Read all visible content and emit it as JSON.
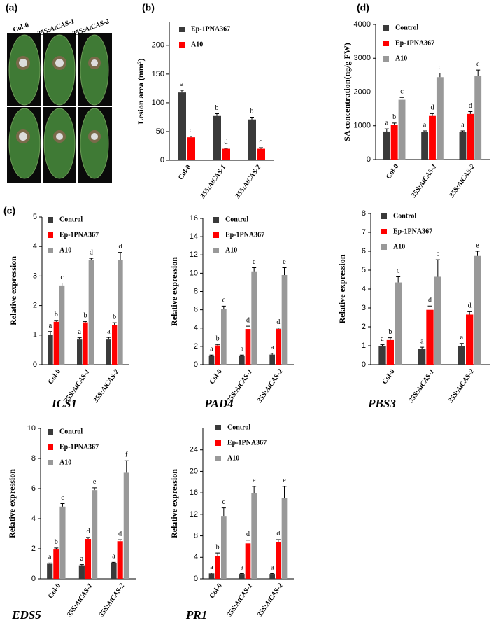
{
  "panel_a": {
    "label": "(a)",
    "columns": [
      "Col-0",
      "35S:AtCAS-1",
      "35S:AtCAS-2"
    ]
  },
  "chart_data": [
    {
      "type": "bar",
      "panel": "(b)",
      "ylabel": "Lesion area (mm²)",
      "categories": [
        "Col-0",
        "35S:AtCAS-1",
        "35S:AtCAS-2"
      ],
      "series": [
        {
          "name": "Ep-1PNA367",
          "color": "#3a3a3a",
          "values": [
            118,
            77,
            71
          ],
          "errors": [
            4,
            4,
            4
          ],
          "letters": [
            "a",
            "b",
            "b"
          ]
        },
        {
          "name": "A10",
          "color": "#ff0000",
          "values": [
            40,
            20,
            20
          ],
          "errors": [
            2,
            1,
            2
          ],
          "letters": [
            "c",
            "d",
            "d"
          ]
        }
      ],
      "ylim": [
        0,
        240
      ],
      "yticks": [
        0,
        50,
        100,
        150,
        200
      ]
    },
    {
      "type": "bar",
      "panel": "(d)",
      "ylabel": "SA concentration(ng/g FW)",
      "categories": [
        "Col-0",
        "35S:AtCAS-1",
        "35S:AtCAS-2"
      ],
      "series": [
        {
          "name": "Control",
          "color": "#3a3a3a",
          "values": [
            830,
            820,
            820
          ],
          "errors": [
            80,
            30,
            30
          ],
          "letters": [
            "a",
            "a",
            "a"
          ]
        },
        {
          "name": "Ep-1PNA367",
          "color": "#ff0000",
          "values": [
            1030,
            1290,
            1350
          ],
          "errors": [
            50,
            70,
            70
          ],
          "letters": [
            "b",
            "d",
            "d"
          ]
        },
        {
          "name": "A10",
          "color": "#999999",
          "values": [
            1770,
            2440,
            2470
          ],
          "errors": [
            70,
            120,
            180
          ],
          "letters": [
            "c",
            "c",
            "c"
          ]
        }
      ],
      "ylim": [
        0,
        4000
      ],
      "yticks": [
        0,
        1000,
        2000,
        3000,
        4000
      ]
    },
    {
      "type": "bar",
      "panel": "(c)",
      "title": "ICS1",
      "ylabel": "Relative expression",
      "categories": [
        "Col-0",
        "35S:AtCAS-1",
        "35S:AtCAS-2"
      ],
      "series": [
        {
          "name": "Control",
          "color": "#3a3a3a",
          "values": [
            1.0,
            0.85,
            0.85
          ],
          "errors": [
            0.12,
            0.06,
            0.07
          ],
          "letters": [
            "a",
            "a",
            "a"
          ]
        },
        {
          "name": "Ep-1PNA367",
          "color": "#ff0000",
          "values": [
            1.45,
            1.43,
            1.35
          ],
          "errors": [
            0.05,
            0.03,
            0.07
          ],
          "letters": [
            "b",
            "b",
            "b"
          ]
        },
        {
          "name": "A10",
          "color": "#999999",
          "values": [
            2.68,
            3.55,
            3.55
          ],
          "errors": [
            0.08,
            0.05,
            0.25
          ],
          "letters": [
            "c",
            "d",
            "d"
          ]
        }
      ],
      "ylim": [
        0,
        5
      ],
      "yticks": [
        0,
        1,
        2,
        3,
        4,
        5
      ]
    },
    {
      "type": "bar",
      "title": "PAD4",
      "ylabel": "Relative expression",
      "categories": [
        "Col-0",
        "35S:AtCAS-1",
        "35S:AtCAS-2"
      ],
      "series": [
        {
          "name": "Control",
          "color": "#3a3a3a",
          "values": [
            1.0,
            1.0,
            1.1
          ],
          "errors": [
            0.05,
            0.05,
            0.15
          ],
          "letters": [
            "a",
            "a",
            "a"
          ]
        },
        {
          "name": "Ep-1PNA367",
          "color": "#ff0000",
          "values": [
            2.1,
            3.9,
            3.9
          ],
          "errors": [
            0.1,
            0.3,
            0.1
          ],
          "letters": [
            "b",
            "d",
            "d"
          ]
        },
        {
          "name": "A10",
          "color": "#999999",
          "values": [
            6.1,
            10.2,
            9.8
          ],
          "errors": [
            0.3,
            0.4,
            0.8
          ],
          "letters": [
            "c",
            "e",
            "e"
          ]
        }
      ],
      "ylim": [
        0,
        16
      ],
      "yticks": [
        0,
        2,
        4,
        6,
        8,
        10,
        12,
        14,
        16
      ]
    },
    {
      "type": "bar",
      "title": "PBS3",
      "ylabel": "Relative expression",
      "categories": [
        "Col-0",
        "35S:AtCAS-1",
        "35S:AtCAS-2"
      ],
      "series": [
        {
          "name": "Control",
          "color": "#3a3a3a",
          "values": [
            1.0,
            0.85,
            1.0
          ],
          "errors": [
            0.05,
            0.07,
            0.12
          ],
          "letters": [
            "a",
            "a",
            "a"
          ]
        },
        {
          "name": "Ep-1PNA367",
          "color": "#ff0000",
          "values": [
            1.3,
            2.9,
            2.65
          ],
          "errors": [
            0.12,
            0.2,
            0.15
          ],
          "letters": [
            "b",
            "d",
            "d"
          ]
        },
        {
          "name": "A10",
          "color": "#999999",
          "values": [
            4.35,
            4.65,
            5.75
          ],
          "errors": [
            0.3,
            0.9,
            0.25
          ],
          "letters": [
            "c",
            "c",
            "e"
          ]
        }
      ],
      "ylim": [
        0,
        8
      ],
      "yticks": [
        0,
        1,
        2,
        3,
        4,
        5,
        6,
        7,
        8
      ]
    },
    {
      "type": "bar",
      "title": "EDS5",
      "ylabel": "Relative expression",
      "categories": [
        "Col-0",
        "35S:AtCAS-1",
        "35S:AtCAS-2"
      ],
      "series": [
        {
          "name": "Control",
          "color": "#3a3a3a",
          "values": [
            1.0,
            0.9,
            1.05
          ],
          "errors": [
            0.05,
            0.05,
            0.05
          ],
          "letters": [
            "a",
            "a",
            "a"
          ]
        },
        {
          "name": "Ep-1PNA367",
          "color": "#ff0000",
          "values": [
            1.95,
            2.65,
            2.5
          ],
          "errors": [
            0.1,
            0.1,
            0.1
          ],
          "letters": [
            "b",
            "d",
            "d"
          ]
        },
        {
          "name": "A10",
          "color": "#999999",
          "values": [
            4.8,
            5.9,
            7.05
          ],
          "errors": [
            0.2,
            0.15,
            0.8
          ],
          "letters": [
            "c",
            "e",
            "f"
          ]
        }
      ],
      "ylim": [
        0,
        10
      ],
      "yticks": [
        0,
        2,
        4,
        6,
        8,
        10
      ]
    },
    {
      "type": "bar",
      "title": "PR1",
      "ylabel": "Relative expression",
      "categories": [
        "Col-0",
        "35S:AtCAS-1",
        "35S:AtCAS-2"
      ],
      "series": [
        {
          "name": "Control",
          "color": "#3a3a3a",
          "values": [
            1.0,
            0.9,
            0.9
          ],
          "errors": [
            0.1,
            0.1,
            0.1
          ],
          "letters": [
            "a",
            "a",
            "a"
          ]
        },
        {
          "name": "Ep-1PNA367",
          "color": "#ff0000",
          "values": [
            4.3,
            6.6,
            6.9
          ],
          "errors": [
            0.5,
            0.6,
            0.4
          ],
          "letters": [
            "b",
            "d",
            "d"
          ]
        },
        {
          "name": "A10",
          "color": "#999999",
          "values": [
            11.7,
            15.9,
            15.1
          ],
          "errors": [
            1.5,
            1.3,
            2.1
          ],
          "letters": [
            "c",
            "e",
            "e"
          ]
        }
      ],
      "ylim": [
        0,
        28
      ],
      "yticks": [
        0,
        4,
        8,
        12,
        16,
        20,
        24
      ]
    }
  ]
}
